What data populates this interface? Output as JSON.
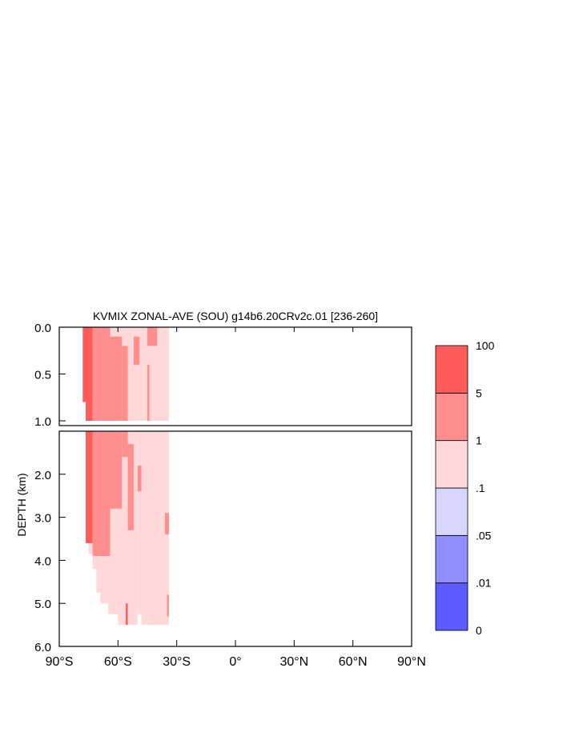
{
  "chart_data": {
    "type": "heatmap",
    "title": "KVMIX ZONAL-AVE (SOU) g14b6.20CRv2c.01 [236-260]",
    "ylabel": "DEPTH (km)",
    "xlabel": "",
    "x_range": [
      -90,
      90
    ],
    "x_ticks": [
      {
        "value": -90,
        "label": "90°S"
      },
      {
        "value": -60,
        "label": "60°S"
      },
      {
        "value": -30,
        "label": "30°S"
      },
      {
        "value": 0,
        "label": "0°"
      },
      {
        "value": 30,
        "label": "30°N"
      },
      {
        "value": 60,
        "label": "60°N"
      },
      {
        "value": 90,
        "label": "90°N"
      }
    ],
    "upper_panel": {
      "depth_range": [
        0.0,
        1.0
      ],
      "y_ticks": [
        {
          "value": 0.0,
          "label": "0.0"
        },
        {
          "value": 0.5,
          "label": "0.5"
        },
        {
          "value": 1.0,
          "label": "1.0"
        }
      ]
    },
    "lower_panel": {
      "depth_range": [
        1.0,
        6.0
      ],
      "y_ticks": [
        {
          "value": 2.0,
          "label": "2.0"
        },
        {
          "value": 3.0,
          "label": "3.0"
        },
        {
          "value": 4.0,
          "label": "4.0"
        },
        {
          "value": 5.0,
          "label": "5.0"
        },
        {
          "value": 6.0,
          "label": "6.0"
        }
      ]
    },
    "colorbar": {
      "levels": [
        "0",
        ".01",
        ".05",
        ".1",
        "1",
        "5",
        "100"
      ],
      "colors": [
        "#5b5bff",
        "#8f8fff",
        "#d6d6ff",
        "#ffd9d9",
        "#ff8f8f",
        "#ff5b5b"
      ]
    },
    "fields": {
      "domain": [
        {
          "lat": -78,
          "depth_top": 0.0,
          "depth_bottom": 0.8
        },
        {
          "lat": -76.5,
          "depth_top": 0.0,
          "depth_bottom": 3.6
        },
        {
          "lat": -75,
          "depth_top": 0.0,
          "depth_bottom": 3.85
        },
        {
          "lat": -73,
          "depth_top": 0.0,
          "depth_bottom": 4.2
        },
        {
          "lat": -71,
          "depth_top": 0.0,
          "depth_bottom": 4.75
        },
        {
          "lat": -69,
          "depth_top": 0.0,
          "depth_bottom": 5.0
        },
        {
          "lat": -65,
          "depth_top": 0.0,
          "depth_bottom": 5.25
        },
        {
          "lat": -60,
          "depth_top": 0.0,
          "depth_bottom": 5.5
        },
        {
          "lat": -56,
          "depth_top": 0.0,
          "depth_bottom": 5.5
        },
        {
          "lat": -50,
          "depth_top": 0.0,
          "depth_bottom": 5.25
        },
        {
          "lat": -48,
          "depth_top": 0.0,
          "depth_bottom": 5.5
        },
        {
          "lat": -35,
          "depth_top": 0.0,
          "depth_bottom": 5.5
        },
        {
          "lat": -34,
          "depth_top": 0.0,
          "depth_bottom": 5.5
        }
      ],
      "strong_band": [
        {
          "lat_from": -78,
          "lat_to": -73,
          "depth_top": 0.0,
          "depth_bottom": 0.8
        },
        {
          "lat_from": -76.5,
          "lat_to": -73,
          "depth_top": 0.8,
          "depth_bottom": 3.6
        }
      ],
      "moderate_patches": [
        {
          "lat_from": -73,
          "lat_to": -64,
          "depth_top": 0.0,
          "depth_bottom": 3.9
        },
        {
          "lat_from": -64,
          "lat_to": -58,
          "depth_top": 0.1,
          "depth_bottom": 2.8
        },
        {
          "lat_from": -58,
          "lat_to": -55,
          "depth_top": 0.2,
          "depth_bottom": 1.6
        },
        {
          "lat_from": -55,
          "lat_to": -52,
          "depth_top": 1.3,
          "depth_bottom": 3.3
        },
        {
          "lat_from": -52,
          "lat_to": -49,
          "depth_top": 0.1,
          "depth_bottom": 0.4
        },
        {
          "lat_from": -50,
          "lat_to": -48,
          "depth_top": 1.8,
          "depth_bottom": 2.4
        },
        {
          "lat_from": -45,
          "lat_to": -40,
          "depth_top": 0.0,
          "depth_bottom": 0.2
        },
        {
          "lat_from": -45,
          "lat_to": -44,
          "depth_top": 0.4,
          "depth_bottom": 1.0
        },
        {
          "lat_from": -36,
          "lat_to": -34,
          "depth_top": 2.9,
          "depth_bottom": 3.4
        },
        {
          "lat_from": -35,
          "lat_to": -34,
          "depth_top": 4.8,
          "depth_bottom": 5.3
        }
      ],
      "deep_strong_patches": [
        {
          "lat_from": -56,
          "lat_to": -55,
          "depth_top": 5.0,
          "depth_bottom": 5.5
        }
      ]
    }
  }
}
